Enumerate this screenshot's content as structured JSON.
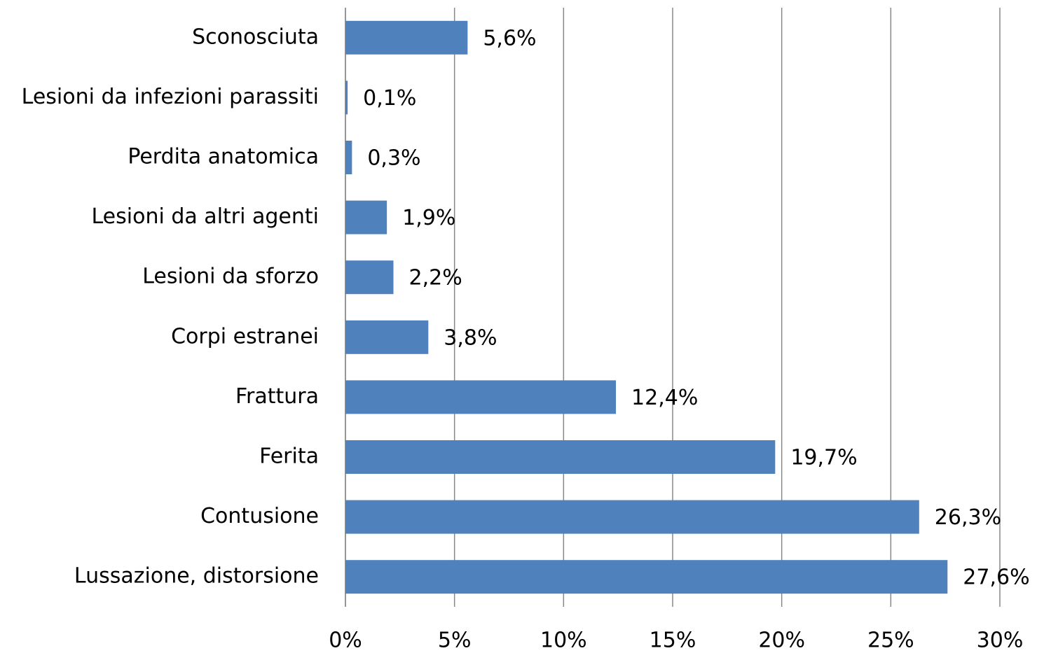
{
  "chart_data": {
    "type": "bar",
    "orientation": "horizontal",
    "categories": [
      "Sconosciuta",
      "Lesioni da infezioni parassiti",
      "Perdita anatomica",
      "Lesioni da altri agenti",
      "Lesioni da sforzo",
      "Corpi estranei",
      "Frattura",
      "Ferita",
      "Contusione",
      "Lussazione, distorsione"
    ],
    "values": [
      5.6,
      0.1,
      0.3,
      1.9,
      2.2,
      3.8,
      12.4,
      19.7,
      26.3,
      27.6
    ],
    "value_labels": [
      "5,6%",
      "0,1%",
      "0,3%",
      "1,9%",
      "2,2%",
      "3,8%",
      "12,4%",
      "19,7%",
      "26,3%",
      "27,6%"
    ],
    "color": "#4f81bd",
    "xlim": [
      0,
      30
    ],
    "xticks": [
      {
        "value": 0,
        "label": "0%"
      },
      {
        "value": 5,
        "label": "5%"
      },
      {
        "value": 10,
        "label": "10%"
      },
      {
        "value": 15,
        "label": "15%"
      },
      {
        "value": 20,
        "label": "20%"
      },
      {
        "value": 25,
        "label": "25%"
      },
      {
        "value": 30,
        "label": "30%"
      }
    ],
    "grid": true
  }
}
